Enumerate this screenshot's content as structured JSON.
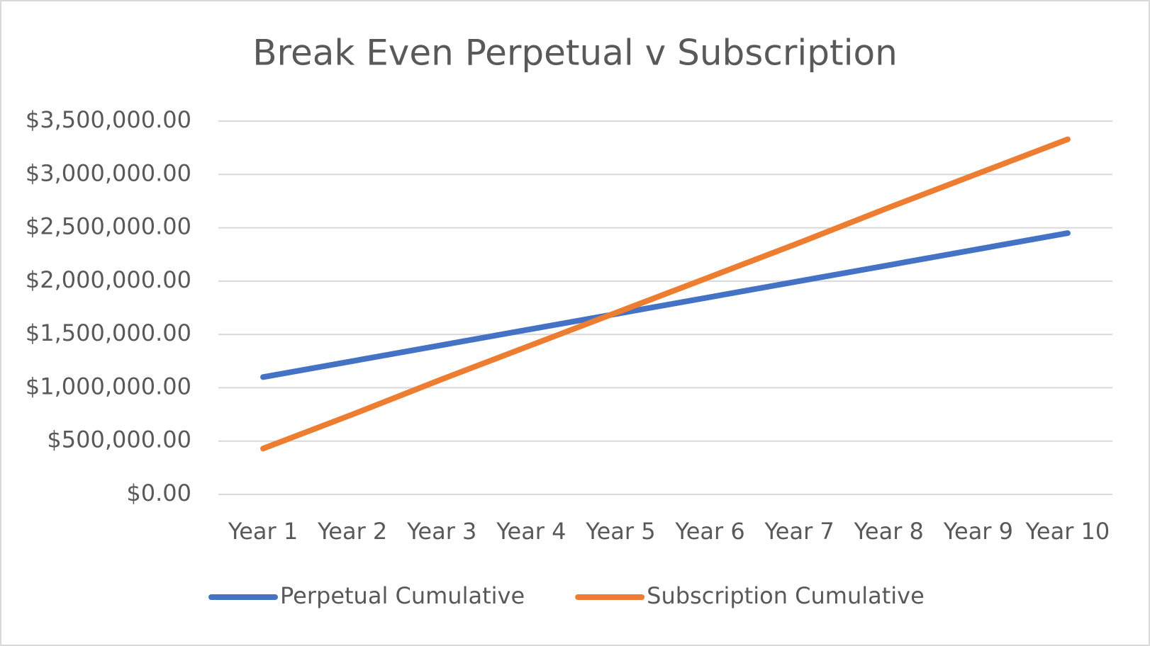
{
  "chart_data": {
    "type": "line",
    "title": "Break Even Perpetual v Subscription",
    "categories": [
      "Year 1",
      "Year 2",
      "Year 3",
      "Year 4",
      "Year 5",
      "Year 6",
      "Year 7",
      "Year 8",
      "Year 9",
      "Year 10"
    ],
    "series": [
      {
        "name": "Perpetual Cumulative",
        "color": "#4472c4",
        "values": [
          1100000,
          1250000,
          1400000,
          1550000,
          1700000,
          1850000,
          2000000,
          2150000,
          2300000,
          2450000
        ]
      },
      {
        "name": "Subscription Cumulative",
        "color": "#ed7d31",
        "values": [
          430000,
          750000,
          1080000,
          1400000,
          1720000,
          2040000,
          2360000,
          2690000,
          3010000,
          3330000
        ]
      }
    ],
    "ylim": [
      0,
      3500000
    ],
    "yticks": [
      {
        "value": 0,
        "label": "$0.00"
      },
      {
        "value": 500000,
        "label": "$500,000.00"
      },
      {
        "value": 1000000,
        "label": "$1,000,000.00"
      },
      {
        "value": 1500000,
        "label": "$1,500,000.00"
      },
      {
        "value": 2000000,
        "label": "$2,000,000.00"
      },
      {
        "value": 2500000,
        "label": "$2,500,000.00"
      },
      {
        "value": 3000000,
        "label": "$3,000,000.00"
      },
      {
        "value": 3500000,
        "label": "$3,500,000.00"
      }
    ],
    "grid": true,
    "legend": "bottom"
  }
}
